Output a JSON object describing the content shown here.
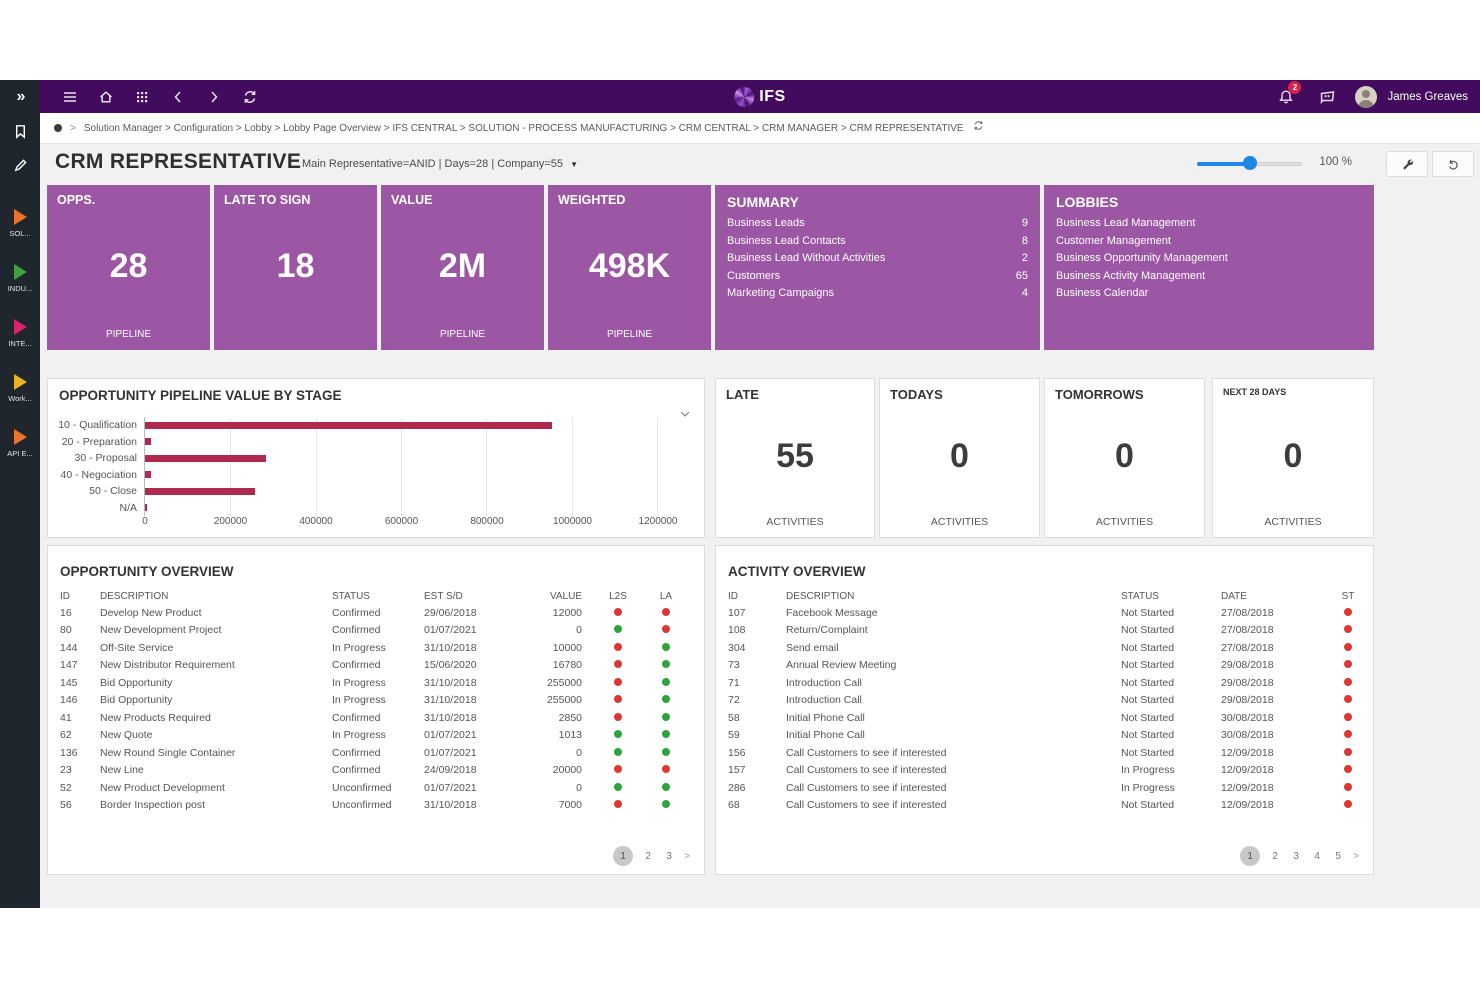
{
  "colors": {
    "topbar": "#430B5D",
    "card_purple": "#9C57A4",
    "bar_crimson": "#B02A50",
    "dot_red": "#DC3730",
    "dot_green": "#2FA33B",
    "slider_blue": "#1E86E5",
    "rail_dark": "#1F262D",
    "badge_red": "#D91E4A"
  },
  "topbar": {
    "logo_text": "IFS",
    "user_name": "James Greaves",
    "notification_count": "2"
  },
  "sidebar": {
    "items": [
      {
        "label": "SOL...",
        "color": "#E8742C"
      },
      {
        "label": "INDU...",
        "color": "#3FA142"
      },
      {
        "label": "INTE...",
        "color": "#D6246E"
      },
      {
        "label": "Work...",
        "color": "#E8B322"
      },
      {
        "label": "API E...",
        "color": "#E8742C"
      }
    ]
  },
  "breadcrumb": {
    "path": "Solution Manager > Configuration > Lobby > Lobby Page Overview > IFS CENTRAL > SOLUTION - PROCESS MANUFACTURING > CRM CENTRAL > CRM MANAGER > CRM REPRESENTATIVE"
  },
  "header": {
    "title": "CRM REPRESENTATIVE",
    "subtitle": "Main Representative=ANID | Days=28 | Company=55",
    "zoom_level": "100 %"
  },
  "kpis": [
    {
      "title": "OPPS.",
      "value": "28",
      "footer": "PIPELINE"
    },
    {
      "title": "LATE TO SIGN",
      "value": "18",
      "footer": ""
    },
    {
      "title": "VALUE",
      "value": "2M",
      "footer": "PIPELINE"
    },
    {
      "title": "WEIGHTED",
      "value": "498K",
      "footer": "PIPELINE"
    }
  ],
  "summary": {
    "title": "SUMMARY",
    "rows": [
      {
        "label": "Business Leads",
        "value": "9"
      },
      {
        "label": "Business Lead Contacts",
        "value": "8"
      },
      {
        "label": "Business Lead Without Activities",
        "value": "2"
      },
      {
        "label": "Customers",
        "value": "65"
      },
      {
        "label": "Marketing Campaigns",
        "value": "4"
      }
    ]
  },
  "lobbies": {
    "title": "LOBBIES",
    "links": [
      "Business Lead Management",
      "Customer Management",
      "Business Opportunity Management",
      "Business Activity Management",
      "Business Calendar"
    ]
  },
  "chart_data": {
    "type": "bar",
    "orientation": "horizontal",
    "title": "OPPORTUNITY PIPELINE VALUE BY STAGE",
    "categories": [
      "10 - Qualification",
      "20 - Preparation",
      "30 - Proposal",
      "40 - Negociation",
      "50 - Close",
      "N/A"
    ],
    "values": [
      955000,
      14000,
      283000,
      14000,
      257000,
      5000
    ],
    "xlim": [
      0,
      1200000
    ],
    "x_ticks": [
      0,
      200000,
      400000,
      600000,
      800000,
      1000000,
      1200000
    ],
    "bar_color": "#B02A50",
    "grid": true,
    "legend": false,
    "xlabel": "",
    "ylabel": ""
  },
  "activity_kpis": [
    {
      "title": "LATE",
      "value": "55",
      "footer": "ACTIVITIES"
    },
    {
      "title": "TODAYS",
      "value": "0",
      "footer": "ACTIVITIES"
    },
    {
      "title": "TOMORROWS",
      "value": "0",
      "footer": "ACTIVITIES"
    },
    {
      "title": "NEXT 28 DAYS",
      "value": "0",
      "footer": "ACTIVITIES"
    }
  ],
  "opportunity_table": {
    "title": "OPPORTUNITY OVERVIEW",
    "columns": [
      "ID",
      "DESCRIPTION",
      "STATUS",
      "EST S/D",
      "VALUE",
      "L2S",
      "LA"
    ],
    "rows": [
      {
        "id": "16",
        "description": "Develop New Product",
        "status": "Confirmed",
        "est_sd": "29/06/2018",
        "value": "12000",
        "l2s": "red",
        "la": "red"
      },
      {
        "id": "80",
        "description": "New Development Project",
        "status": "Confirmed",
        "est_sd": "01/07/2021",
        "value": "0",
        "l2s": "green",
        "la": "red"
      },
      {
        "id": "144",
        "description": "Off-Site Service",
        "status": "In Progress",
        "est_sd": "31/10/2018",
        "value": "10000",
        "l2s": "red",
        "la": "green"
      },
      {
        "id": "147",
        "description": "New Distributor Requirement",
        "status": "Confirmed",
        "est_sd": "15/06/2020",
        "value": "16780",
        "l2s": "red",
        "la": "green"
      },
      {
        "id": "145",
        "description": "Bid Opportunity",
        "status": "In Progress",
        "est_sd": "31/10/2018",
        "value": "255000",
        "l2s": "red",
        "la": "green"
      },
      {
        "id": "146",
        "description": "Bid Opportunity",
        "status": "In Progress",
        "est_sd": "31/10/2018",
        "value": "255000",
        "l2s": "red",
        "la": "green"
      },
      {
        "id": "41",
        "description": "New Products Required",
        "status": "Confirmed",
        "est_sd": "31/10/2018",
        "value": "2850",
        "l2s": "red",
        "la": "green"
      },
      {
        "id": "62",
        "description": "New Quote",
        "status": "In Progress",
        "est_sd": "01/07/2021",
        "value": "1013",
        "l2s": "green",
        "la": "green"
      },
      {
        "id": "136",
        "description": "New Round Single Container",
        "status": "Confirmed",
        "est_sd": "01/07/2021",
        "value": "0",
        "l2s": "green",
        "la": "green"
      },
      {
        "id": "23",
        "description": "New Line",
        "status": "Confirmed",
        "est_sd": "24/09/2018",
        "value": "20000",
        "l2s": "red",
        "la": "red"
      },
      {
        "id": "52",
        "description": "New Product Development",
        "status": "Unconfirmed",
        "est_sd": "01/07/2021",
        "value": "0",
        "l2s": "green",
        "la": "green"
      },
      {
        "id": "56",
        "description": "Border Inspection post",
        "status": "Unconfirmed",
        "est_sd": "31/10/2018",
        "value": "7000",
        "l2s": "red",
        "la": "green"
      }
    ],
    "pagination": [
      "1",
      "2",
      "3",
      ">"
    ],
    "active_page": "1"
  },
  "activity_table": {
    "title": "ACTIVITY OVERVIEW",
    "columns": [
      "ID",
      "DESCRIPTION",
      "STATUS",
      "DATE",
      "ST"
    ],
    "rows": [
      {
        "id": "107",
        "description": "Facebook Message",
        "status": "Not Started",
        "date": "27/08/2018",
        "st": "red"
      },
      {
        "id": "108",
        "description": "Return/Complaint",
        "status": "Not Started",
        "date": "27/08/2018",
        "st": "red"
      },
      {
        "id": "304",
        "description": "Send email",
        "status": "Not Started",
        "date": "27/08/2018",
        "st": "red"
      },
      {
        "id": "73",
        "description": "Annual Review Meeting",
        "status": "Not Started",
        "date": "29/08/2018",
        "st": "red"
      },
      {
        "id": "71",
        "description": "Introduction Call",
        "status": "Not Started",
        "date": "29/08/2018",
        "st": "red"
      },
      {
        "id": "72",
        "description": "Introduction Call",
        "status": "Not Started",
        "date": "29/08/2018",
        "st": "red"
      },
      {
        "id": "58",
        "description": "Initial Phone Call",
        "status": "Not Started",
        "date": "30/08/2018",
        "st": "red"
      },
      {
        "id": "59",
        "description": "Initial Phone Call",
        "status": "Not Started",
        "date": "30/08/2018",
        "st": "red"
      },
      {
        "id": "156",
        "description": "Call Customers to see if interested",
        "status": "Not Started",
        "date": "12/09/2018",
        "st": "red"
      },
      {
        "id": "157",
        "description": "Call Customers to see if interested",
        "status": "In Progress",
        "date": "12/09/2018",
        "st": "red"
      },
      {
        "id": "286",
        "description": "Call Customers to see if interested",
        "status": "In Progress",
        "date": "12/09/2018",
        "st": "red"
      },
      {
        "id": "68",
        "description": "Call Customers to see if interested",
        "status": "Not Started",
        "date": "12/09/2018",
        "st": "red"
      }
    ],
    "pagination": [
      "1",
      "2",
      "3",
      "4",
      "5",
      ">"
    ],
    "active_page": "1"
  }
}
